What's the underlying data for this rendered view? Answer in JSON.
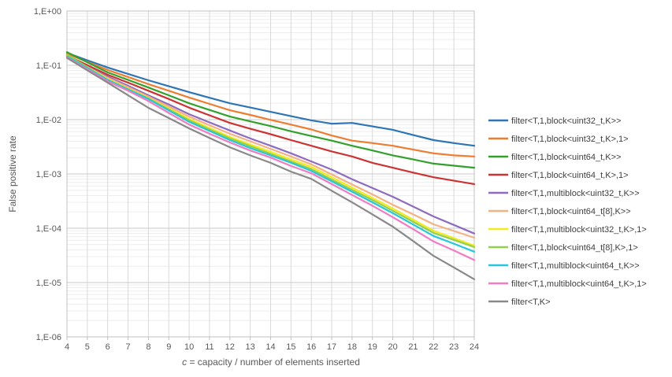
{
  "chart": {
    "y_axis_title": "False positive rate",
    "x_axis_title_italic": "c",
    "x_axis_title_rest": " = capacity / number of elements inserted",
    "y_tick_labels": [
      "1,E+00",
      "1,E-01",
      "1,E-02",
      "1,E-03",
      "1,E-04",
      "1,E-05",
      "1,E-06"
    ],
    "text_color": "#595959",
    "major_grid_color": "#c9c9c9",
    "minor_grid_color": "#ededed",
    "vertical_grid_color": "#d9d9d9",
    "border_color": "#c0c0c0"
  },
  "chart_data": {
    "type": "line",
    "title": "",
    "xlabel": "c = capacity / number of elements inserted",
    "ylabel": "False positive rate",
    "y_scale": "log",
    "xlim": [
      4,
      24
    ],
    "ylim": [
      1e-06,
      1
    ],
    "grid": true,
    "legend_position": "right",
    "x": [
      4,
      5,
      6,
      7,
      8,
      9,
      10,
      11,
      12,
      13,
      14,
      15,
      16,
      17,
      18,
      19,
      20,
      21,
      22,
      23,
      24
    ],
    "series": [
      {
        "name": "filter<T,1,block<uint32_t,K>>",
        "color": "#2e75b6",
        "values": [
          0.17,
          0.124,
          0.091,
          0.0695,
          0.053,
          0.0412,
          0.032,
          0.0253,
          0.02,
          0.0167,
          0.0139,
          0.0116,
          0.0097,
          0.0084,
          0.0087,
          0.0075,
          0.0065,
          0.0052,
          0.0042,
          0.0037,
          0.0033
        ]
      },
      {
        "name": "filter<T,1,block<uint32_t,K>,1>",
        "color": "#ed7d31",
        "values": [
          0.163,
          0.116,
          0.082,
          0.061,
          0.045,
          0.034,
          0.0255,
          0.0195,
          0.0149,
          0.0122,
          0.0099,
          0.0081,
          0.0066,
          0.0051,
          0.0041,
          0.0037,
          0.0033,
          0.0028,
          0.0024,
          0.0022,
          0.0021
        ]
      },
      {
        "name": "filter<T,1,block<uint64_t,K>>",
        "color": "#33a02c",
        "values": [
          0.175,
          0.114,
          0.074,
          0.054,
          0.039,
          0.028,
          0.02,
          0.0151,
          0.0114,
          0.0093,
          0.0076,
          0.0061,
          0.005,
          0.0041,
          0.0033,
          0.0027,
          0.0022,
          0.00185,
          0.00155,
          0.00142,
          0.0013
        ]
      },
      {
        "name": "filter<T,1,block<uint64_t,K>,1>",
        "color": "#cc3333",
        "values": [
          0.152,
          0.101,
          0.067,
          0.048,
          0.034,
          0.024,
          0.0166,
          0.012,
          0.0087,
          0.0068,
          0.0054,
          0.0042,
          0.0033,
          0.0026,
          0.0021,
          0.0016,
          0.0013,
          0.00106,
          0.00087,
          0.00075,
          0.00065
        ]
      },
      {
        "name": "filter<T,1,multiblock<uint32_t,K>>",
        "color": "#8f6bbf",
        "values": [
          0.143,
          0.094,
          0.062,
          0.042,
          0.028,
          0.019,
          0.0126,
          0.0089,
          0.0063,
          0.0045,
          0.0033,
          0.0024,
          0.0017,
          0.0012,
          0.0008,
          0.00055,
          0.00038,
          0.00025,
          0.000165,
          0.000115,
          8e-05
        ]
      },
      {
        "name": "filter<T,1,block<uint64_t[8],K>>",
        "color": "#f4b183",
        "values": [
          0.149,
          0.093,
          0.059,
          0.0395,
          0.0265,
          0.0174,
          0.0114,
          0.0079,
          0.0055,
          0.004,
          0.0029,
          0.0021,
          0.0015,
          0.00098,
          0.00064,
          0.00042,
          0.00027,
          0.00018,
          0.000118,
          8.9e-05,
          6.7e-05
        ]
      },
      {
        "name": "filter<T,1,multiblock<uint32_t,K>,1>",
        "color": "#f2ea1f",
        "values": [
          0.155,
          0.093,
          0.056,
          0.037,
          0.025,
          0.016,
          0.0103,
          0.007,
          0.0048,
          0.0035,
          0.00255,
          0.00185,
          0.00135,
          0.00087,
          0.00056,
          0.00036,
          0.00023,
          0.000144,
          9e-05,
          6.6e-05,
          4.8e-05
        ]
      },
      {
        "name": "filter<T,1,block<uint64_t[8],K>,1>",
        "color": "#92d050",
        "values": [
          0.158,
          0.092,
          0.054,
          0.036,
          0.0245,
          0.0154,
          0.0097,
          0.0066,
          0.0045,
          0.00325,
          0.00235,
          0.0017,
          0.00123,
          0.00079,
          0.00051,
          0.00033,
          0.00021,
          0.000131,
          8.2e-05,
          6.1e-05,
          4.5e-05
        ]
      },
      {
        "name": "filter<T,1,multiblock<uint64_t,K>>",
        "color": "#27c6dc",
        "values": [
          0.146,
          0.089,
          0.054,
          0.036,
          0.024,
          0.0148,
          0.0091,
          0.0062,
          0.0042,
          0.003,
          0.0022,
          0.0016,
          0.00114,
          0.00073,
          0.00047,
          0.0003,
          0.00019,
          0.000117,
          7.2e-05,
          5.2e-05,
          3.7e-05
        ]
      },
      {
        "name": "filter<T,1,multiblock<uint64_t,K>,1>",
        "color": "#f07cc4",
        "values": [
          0.14,
          0.085,
          0.051,
          0.034,
          0.022,
          0.0133,
          0.0081,
          0.0055,
          0.0038,
          0.0027,
          0.002,
          0.0014,
          0.00103,
          0.00065,
          0.00041,
          0.00026,
          0.00016,
          9.6e-05,
          5.7e-05,
          3.9e-05,
          2.6e-05
        ]
      },
      {
        "name": "filter<T,K>",
        "color": "#898989",
        "values": [
          0.137,
          0.081,
          0.048,
          0.028,
          0.0165,
          0.0107,
          0.0069,
          0.0046,
          0.0031,
          0.0022,
          0.0016,
          0.0011,
          0.00081,
          0.00049,
          0.0003,
          0.00018,
          0.000107,
          5.8e-05,
          3.1e-05,
          1.9e-05,
          1.15e-05
        ]
      }
    ]
  }
}
